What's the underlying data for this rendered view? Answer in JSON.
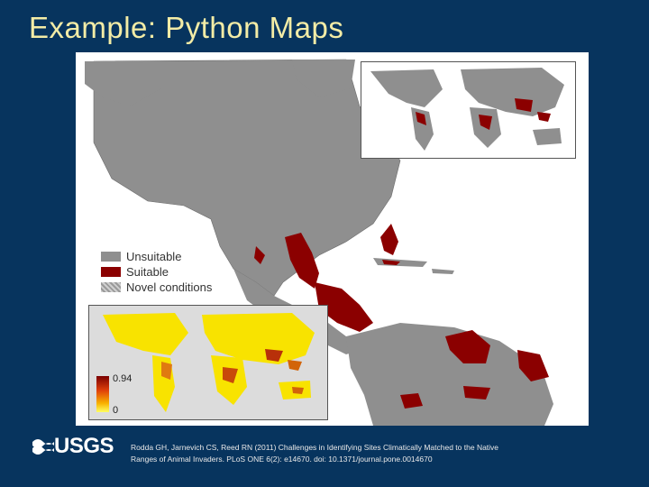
{
  "slide": {
    "title": "Example: Python Maps"
  },
  "legend": {
    "items": [
      {
        "label": "Unsuitable",
        "color": "#8f8f8f"
      },
      {
        "label": "Suitable",
        "color": "#8b0000"
      },
      {
        "label": "Novel conditions",
        "color": "#bdbdbd"
      }
    ]
  },
  "scale": {
    "max_label": "0.94",
    "min_label": "0"
  },
  "footer": {
    "logo_text": "USGS",
    "citation_line1": "Rodda GH, Jarnevich CS, Reed RN (2011) Challenges in Identifying Sites Climatically Matched to the Native",
    "citation_line2": "Ranges of Animal Invaders. PLoS ONE 6(2): e14670. doi: 10.1371/journal.pone.0014670"
  }
}
